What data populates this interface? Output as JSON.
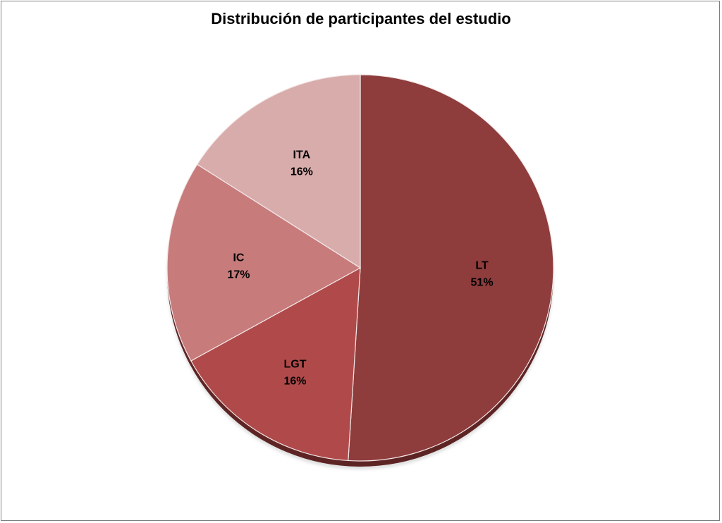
{
  "chart_data": {
    "type": "pie",
    "title": "Distribución de participantes del estudio",
    "slices": [
      {
        "label": "LT",
        "value": 51,
        "value_label": "51%",
        "color": "#8e3c3c"
      },
      {
        "label": "LGT",
        "value": 16,
        "value_label": "16%",
        "color": "#b04a4a"
      },
      {
        "label": "IC",
        "value": 17,
        "value_label": "17%",
        "color": "#c77b7b"
      },
      {
        "label": "ITA",
        "value": 16,
        "value_label": "16%",
        "color": "#d9acac"
      }
    ],
    "legend": "none",
    "data_labels": "inside"
  }
}
